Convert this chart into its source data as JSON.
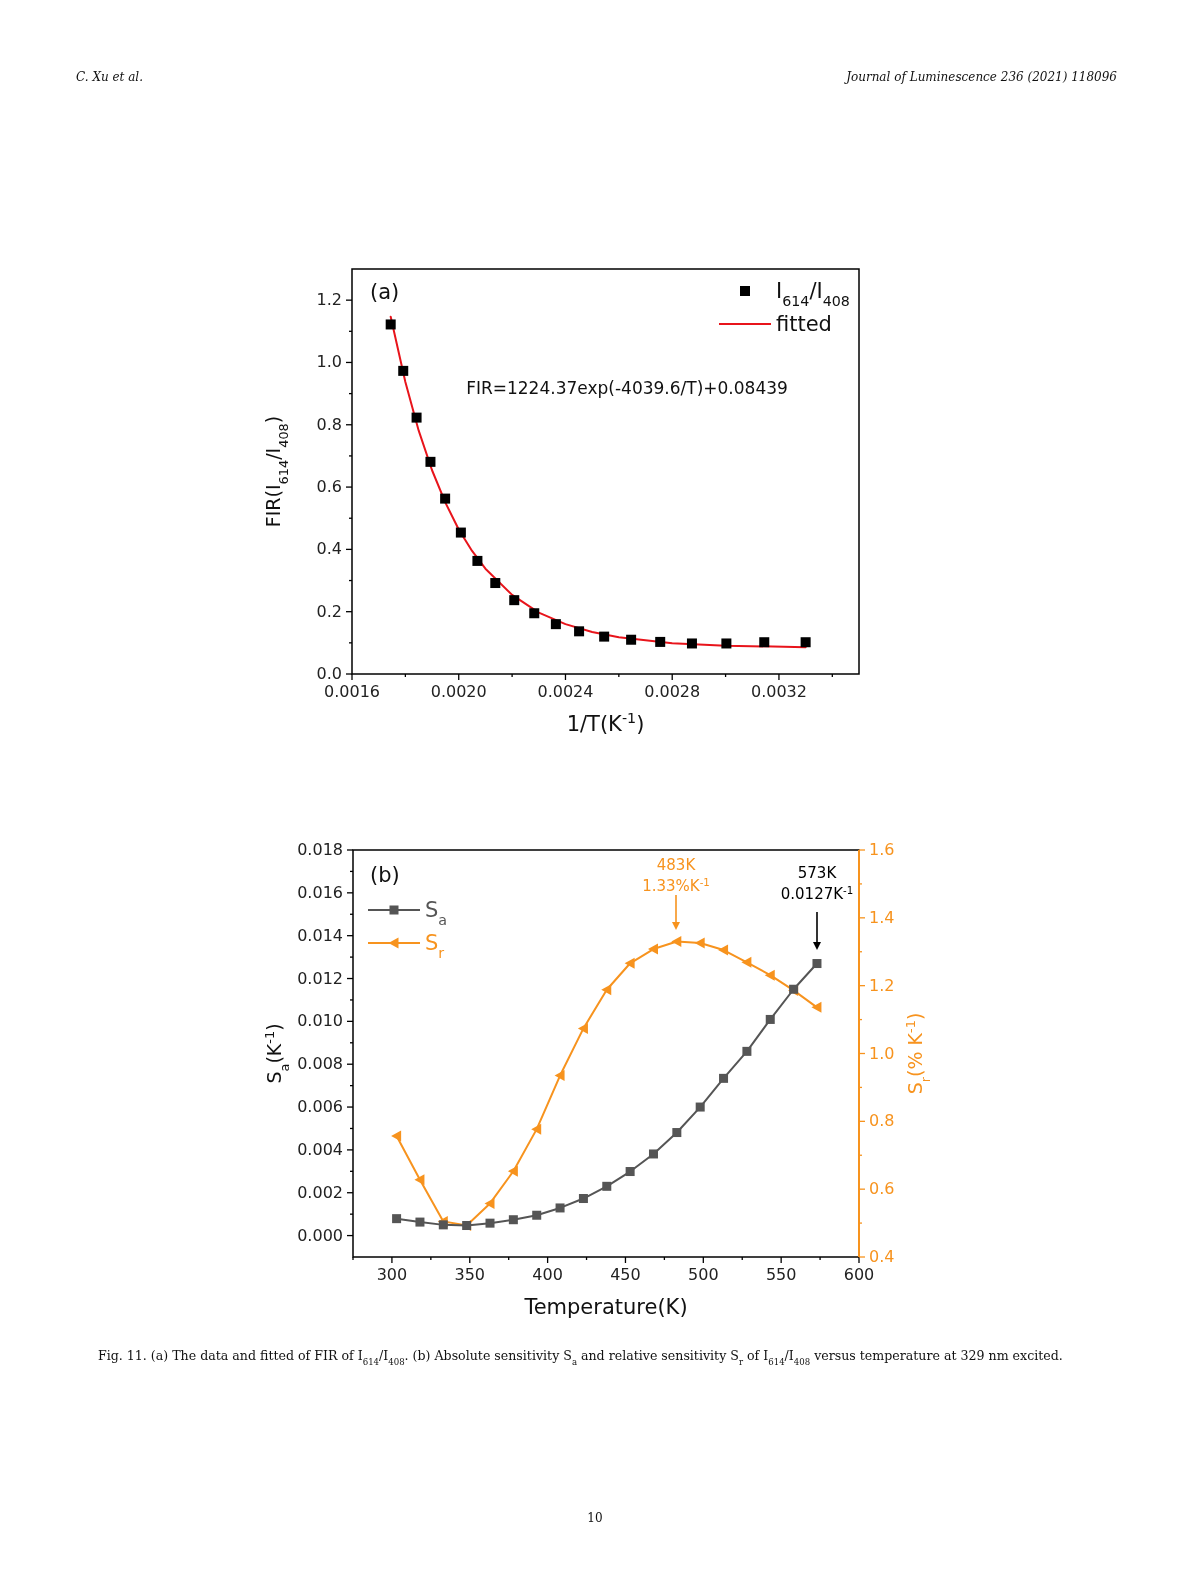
{
  "chart_data": [
    {
      "type": "scatter",
      "xlabel": "1/T(K$^{-1}$)",
      "ylabel": "FIR(I$_{614}$/I$_{408}$)",
      "annotations": [
        "C. Xu et al.",
        "Journal of Luminescence 236 (2021) 118096",
        "(a)",
        "FIR=1224.37exp(-4039.6/T)+0.08439"
      ],
      "x": [
        0.001745,
        0.001792,
        0.001842,
        0.001894,
        0.001949,
        0.002008,
        0.00207,
        0.002137,
        0.002208,
        0.002283,
        0.002364,
        0.002451,
        0.002545,
        0.002646,
        0.002755,
        0.002874,
        0.003003,
        0.003145,
        0.0033
      ],
      "series": [
        {
          "name": "I$_{614}$/I$_{408}$",
          "marker": "square",
          "color": "#000000",
          "values": [
            1.122,
            0.973,
            0.823,
            0.681,
            0.563,
            0.454,
            0.363,
            0.292,
            0.237,
            0.195,
            0.16,
            0.137,
            0.12,
            0.11,
            0.103,
            0.098,
            0.098,
            0.102,
            0.102
          ]
        },
        {
          "name": "fitted",
          "type": "line",
          "marker": "none",
          "color": "#e8141b",
          "x": [
            0.001745,
            0.0018,
            0.00185,
            0.0019,
            0.00195,
            0.002,
            0.00205,
            0.0021,
            0.0022,
            0.0023,
            0.0024,
            0.0025,
            0.0026,
            0.0028,
            0.003,
            0.0033
          ],
          "values": [
            1.147,
            0.937,
            0.781,
            0.654,
            0.55,
            0.464,
            0.395,
            0.338,
            0.254,
            0.197,
            0.16,
            0.135,
            0.118,
            0.099,
            0.091,
            0.086
          ]
        }
      ],
      "xlim": [
        0.0016,
        0.0035
      ],
      "ylim": [
        0,
        1.3
      ],
      "xticks": [
        0.0016,
        {
          "value": 0.0018,
          "label": null
        },
        {
          "value": 0.002,
          "label": "0.0020"
        },
        {
          "value": 0.0022,
          "label": null
        },
        0.0024,
        {
          "value": 0.0026,
          "label": null
        },
        0.0028,
        {
          "value": 0.003,
          "label": null
        },
        0.0032,
        {
          "value": 0.0034,
          "label": null
        }
      ],
      "yticks": [
        {
          "value": 0,
          "label": "0.0"
        },
        {
          "value": 0.1,
          "label": null
        },
        0.2,
        {
          "value": 0.3,
          "label": null
        },
        0.4,
        {
          "value": 0.5,
          "label": null
        },
        0.6,
        {
          "value": 0.7,
          "label": null
        },
        0.8,
        {
          "value": 0.9,
          "label": null
        },
        {
          "value": 1,
          "label": "1.0"
        },
        {
          "value": 1.1,
          "label": null
        },
        1.2
      ],
      "legend": "top right"
    },
    {
      "type": "line",
      "xlabel": "Temperature(K)",
      "ylabel": "S$_{a}$(K$^{-1}$)",
      "y2label": "S$_{r}$(% K$^{-1}$)",
      "annotations": [
        "(b)",
        "483K\n1.33%K$^{-1}$",
        "573K\n0.0127K$^{-1}$",
        "Fig. 11. (a) The data and fitted of FIR of I$_{614}$/I$_{408}$. (b) Absolute sensitivity S$_{a}$ and relative sensitivity S$_{r}$ of I$_{614}$/I$_{408}$ versus temperature at 329 nm excited.",
        "10"
      ],
      "x": [
        303,
        318,
        333,
        348,
        363,
        378,
        393,
        408,
        423,
        438,
        453,
        468,
        483,
        498,
        513,
        528,
        543,
        558,
        573
      ],
      "series": [
        {
          "name": "S$_{a}$",
          "marker": "square",
          "color": "#555555",
          "values": [
            0.00079,
            0.00063,
            0.0005,
            0.00047,
            0.00058,
            0.00074,
            0.00095,
            0.00129,
            0.00173,
            0.0023,
            0.00299,
            0.00381,
            0.00481,
            0.006,
            0.00734,
            0.0086,
            0.01009,
            0.0115,
            0.0127
          ]
        },
        {
          "name": "S$_{r}$",
          "marker": "triangle",
          "axis": "y2",
          "color": "#f7931e",
          "values": [
            0.757,
            0.628,
            0.505,
            0.493,
            0.558,
            0.653,
            0.777,
            0.935,
            1.074,
            1.188,
            1.266,
            1.308,
            1.33,
            1.326,
            1.305,
            1.269,
            1.231,
            1.186,
            1.136
          ]
        }
      ],
      "xlim": [
        275,
        600
      ],
      "ylim": [
        -0.001,
        0.018
      ],
      "y2lim": [
        0.4,
        1.6
      ],
      "xticks": [
        {
          "value": 275,
          "label": null
        },
        300,
        {
          "value": 325,
          "label": null
        },
        350,
        {
          "value": 375,
          "label": null
        },
        400,
        {
          "value": 425,
          "label": null
        },
        450,
        {
          "value": 475,
          "label": null
        },
        500,
        {
          "value": 525,
          "label": null
        },
        550,
        {
          "value": 575,
          "label": null
        },
        600
      ],
      "yticks": [
        {
          "value": 0,
          "label": "0.000"
        },
        {
          "value": 0.001,
          "label": null
        },
        {
          "value": 0.002,
          "label": "0.002"
        },
        {
          "value": 0.003,
          "label": null
        },
        {
          "value": 0.004,
          "label": "0.004"
        },
        {
          "value": 0.005,
          "label": null
        },
        {
          "value": 0.006,
          "label": "0.006"
        },
        {
          "value": 0.007,
          "label": null
        },
        {
          "value": 0.008,
          "label": "0.008"
        },
        {
          "value": 0.009,
          "label": null
        },
        {
          "value": 0.01,
          "label": "0.010"
        },
        {
          "value": 0.011,
          "label": null
        },
        {
          "value": 0.012,
          "label": "0.012"
        },
        {
          "value": 0.013,
          "label": null
        },
        {
          "value": 0.014,
          "label": "0.014"
        },
        {
          "value": 0.015,
          "label": null
        },
        {
          "value": 0.016,
          "label": "0.016"
        },
        {
          "value": 0.017,
          "label": null
        },
        {
          "value": 0.018,
          "label": "0.018"
        }
      ],
      "y2ticks": [
        0.4,
        {
          "value": 0.5,
          "label": null
        },
        0.6,
        {
          "value": 0.7,
          "label": null
        },
        0.8,
        {
          "value": 0.9,
          "label": null
        },
        {
          "value": 1,
          "label": "1.0"
        },
        {
          "value": 1.1,
          "label": null
        },
        1.2,
        {
          "value": 1.3,
          "label": null
        },
        1.4,
        {
          "value": 1.5,
          "label": null
        },
        1.6
      ],
      "legend": "top left"
    }
  ]
}
